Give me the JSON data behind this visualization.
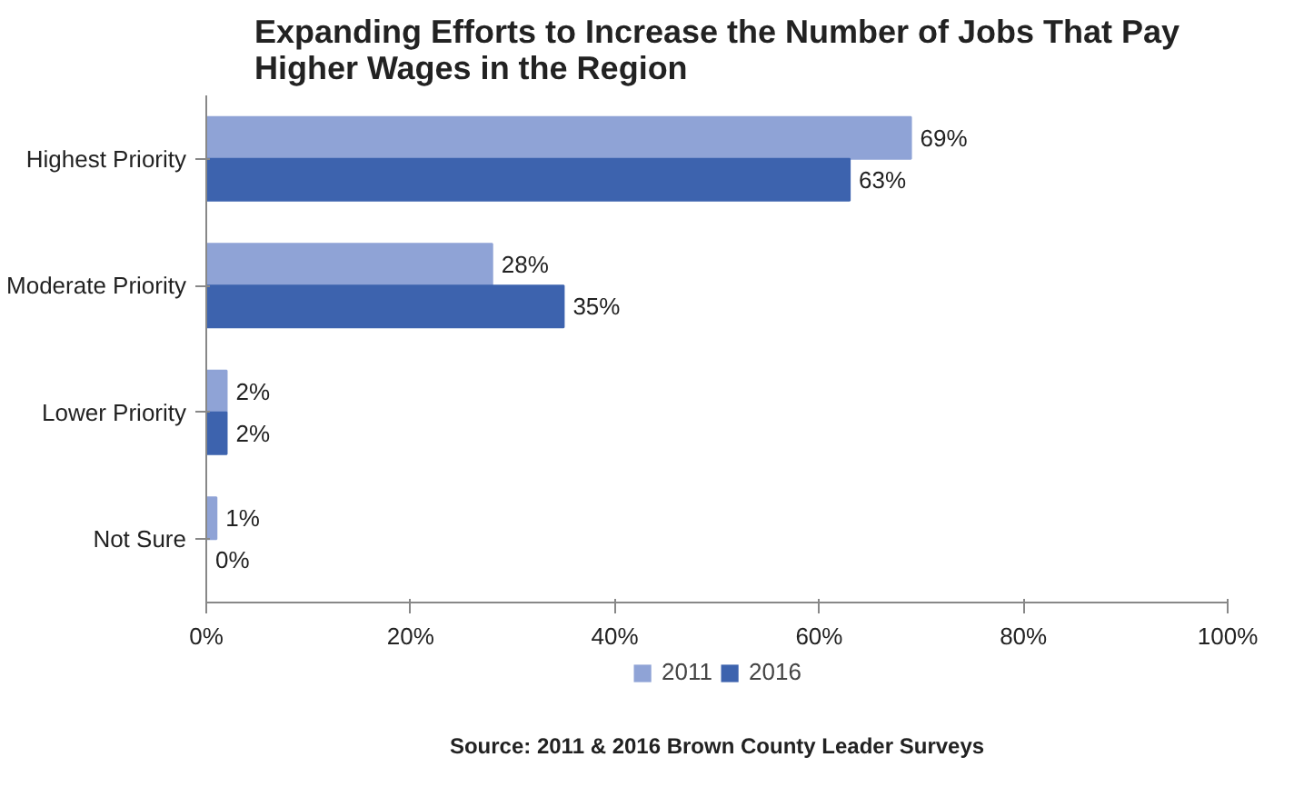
{
  "chart_data": {
    "type": "bar",
    "orientation": "horizontal",
    "title": "Expanding Efforts to Increase the Number of Jobs That Pay Higher Wages in the Region",
    "categories": [
      "Highest Priority",
      "Moderate Priority",
      "Lower Priority",
      "Not Sure"
    ],
    "series": [
      {
        "name": "2011",
        "color": "#8fa3d6",
        "values": [
          69,
          28,
          2,
          1
        ],
        "value_labels": [
          "69%",
          "28%",
          "2%",
          "1%"
        ]
      },
      {
        "name": "2016",
        "color": "#3d63ae",
        "values": [
          63,
          35,
          2,
          0
        ],
        "value_labels": [
          "63%",
          "35%",
          "2%",
          "0%"
        ]
      }
    ],
    "xlim": [
      0,
      100
    ],
    "xticks": [
      {
        "value": 0,
        "label": "0%"
      },
      {
        "value": 20,
        "label": "20%"
      },
      {
        "value": 40,
        "label": "40%"
      },
      {
        "value": 60,
        "label": "60%"
      },
      {
        "value": 80,
        "label": "80%"
      },
      {
        "value": 100,
        "label": "100%"
      }
    ],
    "grid": false,
    "legend": "bottom",
    "annotations": [
      "Source: 2011 & 2016 Brown County Leader Surveys"
    ]
  }
}
